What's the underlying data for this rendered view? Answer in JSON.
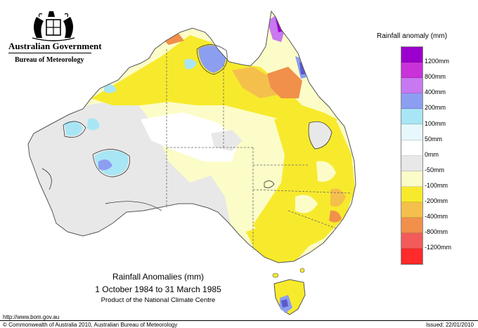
{
  "header": {
    "government": "Australian Government",
    "bureau": "Bureau of Meteorology"
  },
  "legend": {
    "title": "Rainfall anomaly (mm)",
    "items": [
      {
        "label": "1200mm",
        "color": "#9b00cc"
      },
      {
        "label": "800mm",
        "color": "#c832d8"
      },
      {
        "label": "400mm",
        "color": "#c878f0"
      },
      {
        "label": "200mm",
        "color": "#8c9ef0"
      },
      {
        "label": "100mm",
        "color": "#a8e6f5"
      },
      {
        "label": "50mm",
        "color": "#e6f8fb"
      },
      {
        "label": "0mm",
        "color": "#ffffff"
      },
      {
        "label": "-50mm",
        "color": "#e8e8e8"
      },
      {
        "label": "-100mm",
        "color": "#fcfcc8"
      },
      {
        "label": "-200mm",
        "color": "#f7ea2d"
      },
      {
        "label": "-400mm",
        "color": "#f5bf4c"
      },
      {
        "label": "-800mm",
        "color": "#f0904a"
      },
      {
        "label": "-1200mm",
        "color": "#f35a5a"
      },
      {
        "label": "",
        "color": "#ff2a2a"
      }
    ]
  },
  "title": {
    "line1": "Rainfall Anomalies (mm)",
    "line2": "1 October 1984 to 31 March 1985",
    "line3": "Product of the National Climate Centre"
  },
  "footer": {
    "url": "http://www.bom.gov.au",
    "copyright": "© Commonwealth of Australia 2010, Australian Bureau of Meteorology",
    "issued": "Issued: 22/01/2010"
  }
}
